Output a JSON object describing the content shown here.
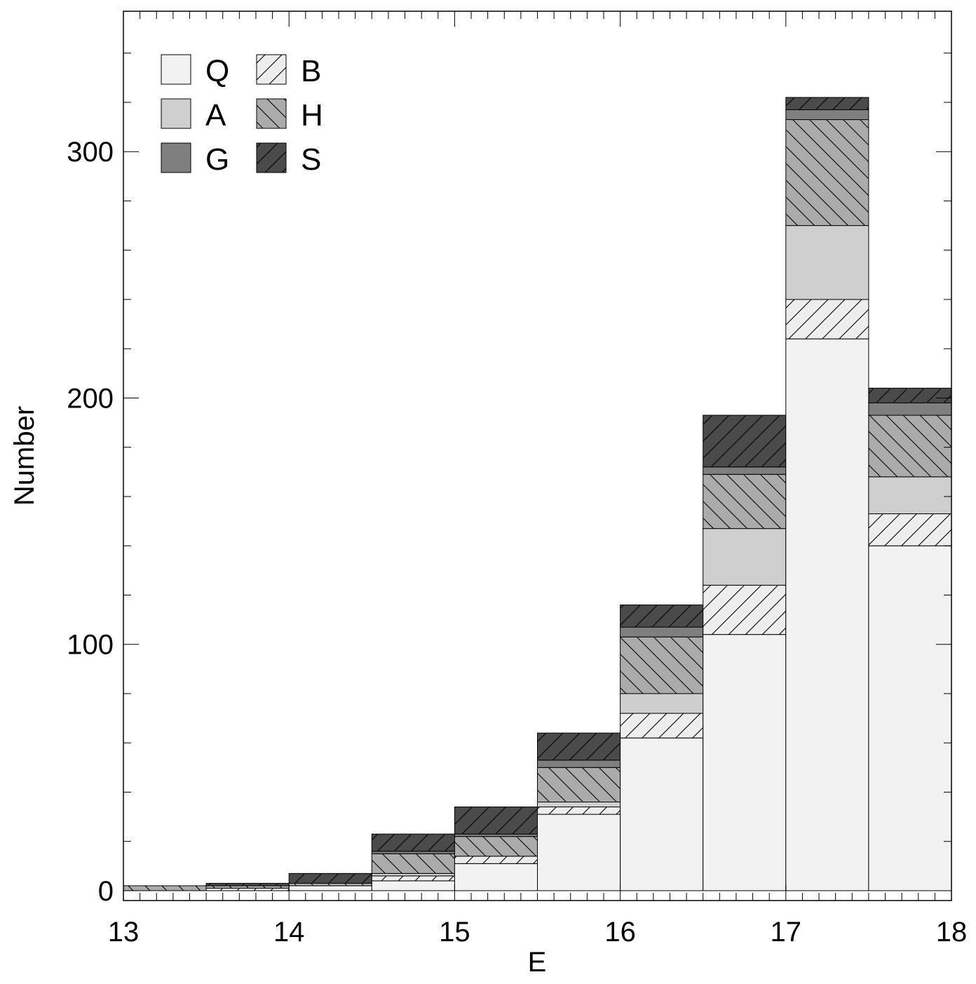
{
  "chart_data": {
    "type": "bar",
    "stacked": true,
    "title": "",
    "xlabel": "E",
    "ylabel": "Number",
    "xlim": [
      13,
      18
    ],
    "ylim": [
      -4,
      357
    ],
    "x_ticks": [
      "13",
      "14",
      "15",
      "16",
      "17",
      "18"
    ],
    "y_ticks": [
      "0",
      "100",
      "200",
      "300"
    ],
    "bin_edges": [
      13,
      13.5,
      14,
      14.5,
      15,
      15.5,
      16,
      16.5,
      17,
      17.5,
      18
    ],
    "series": [
      {
        "name": "Q",
        "color": "#f2f2f2",
        "pattern": "none",
        "values": [
          0,
          0,
          2,
          4,
          11,
          31,
          62,
          104,
          224,
          140
        ]
      },
      {
        "name": "B",
        "color": "#ececec",
        "pattern": "forward",
        "values": [
          0,
          1,
          0,
          2,
          3,
          3,
          10,
          20,
          16,
          13
        ]
      },
      {
        "name": "A",
        "color": "#cfcfcf",
        "pattern": "none",
        "values": [
          0,
          0,
          0,
          1,
          0,
          2,
          8,
          23,
          30,
          15
        ]
      },
      {
        "name": "H",
        "color": "#ababab",
        "pattern": "back",
        "values": [
          2,
          1,
          1,
          8,
          8,
          14,
          23,
          22,
          43,
          25
        ]
      },
      {
        "name": "G",
        "color": "#7f7f7f",
        "pattern": "none",
        "values": [
          0,
          0,
          0,
          1,
          1,
          3,
          4,
          3,
          4,
          5
        ]
      },
      {
        "name": "S",
        "color": "#4a4a4a",
        "pattern": "forward",
        "values": [
          0,
          1,
          4,
          7,
          11,
          11,
          9,
          21,
          5,
          6
        ]
      }
    ],
    "legend": {
      "position": "top-left",
      "columns": [
        [
          "Q",
          "A",
          "G"
        ],
        [
          "B",
          "H",
          "S"
        ]
      ]
    },
    "grid": false
  }
}
